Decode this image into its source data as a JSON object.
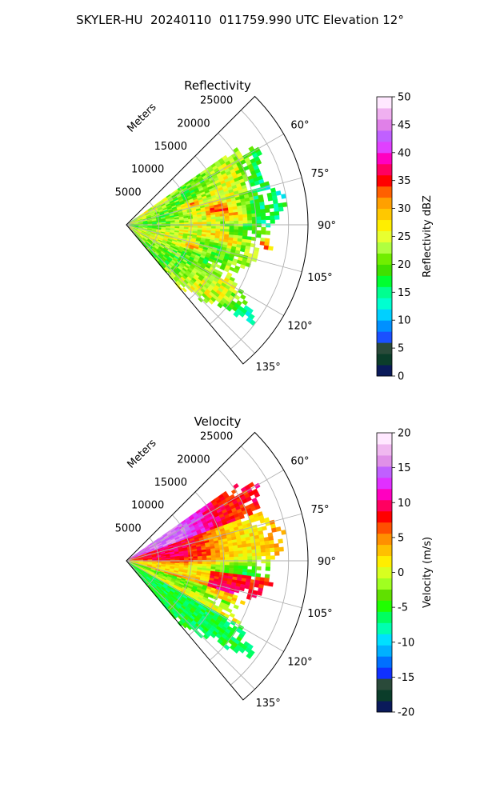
{
  "figure_title": "SKYLER-HU  20240110  011759.990 UTC Elevation 12°",
  "chart_data": [
    {
      "type": "heatmap",
      "title": "Reflectivity",
      "projection": "polar-sector",
      "range_label": "Meters",
      "range_ticks": [
        5000,
        10000,
        15000,
        20000,
        25000
      ],
      "range_max": 28000,
      "azimuth_min": 45,
      "azimuth_max": 140,
      "azimuth_ticks": [
        "60°",
        "75°",
        "90°",
        "105°",
        "120°",
        "135°"
      ],
      "azimuth_tick_values": [
        60,
        75,
        90,
        105,
        120,
        135
      ],
      "grid": true,
      "colorbar": {
        "label": "Reflectivity dBZ",
        "min": 0,
        "max": 50,
        "ticks": [
          0,
          5,
          10,
          15,
          20,
          25,
          30,
          35,
          40,
          45,
          50
        ],
        "colors": [
          "#0a1a5a",
          "#0b3d2a",
          "#2a4a3a",
          "#1a50ff",
          "#0090ff",
          "#00d0ff",
          "#00ffd0",
          "#00ff90",
          "#00ff30",
          "#40e000",
          "#70ee00",
          "#b0ff40",
          "#e8ff30",
          "#ffee00",
          "#ffc800",
          "#ffa000",
          "#ff6000",
          "#ff0000",
          "#ff0060",
          "#ff00c0",
          "#e040ff",
          "#c060ff",
          "#e080e8",
          "#f0b0f0",
          "#ffe8ff"
        ]
      }
    },
    {
      "type": "heatmap",
      "title": "Velocity",
      "projection": "polar-sector",
      "range_label": "Meters",
      "range_ticks": [
        5000,
        10000,
        15000,
        20000,
        25000
      ],
      "range_max": 28000,
      "azimuth_min": 45,
      "azimuth_max": 140,
      "azimuth_ticks": [
        "60°",
        "75°",
        "90°",
        "105°",
        "120°",
        "135°"
      ],
      "azimuth_tick_values": [
        60,
        75,
        90,
        105,
        120,
        135
      ],
      "grid": true,
      "colorbar": {
        "label": "Velocity (m/s)",
        "min": -20,
        "max": 20,
        "ticks": [
          -20,
          -15,
          -10,
          -5,
          0,
          5,
          10,
          15,
          20
        ],
        "colors": [
          "#0a1a5a",
          "#0b3d2a",
          "#2a4a3a",
          "#1030ff",
          "#0070ff",
          "#00b0ff",
          "#00e0ff",
          "#00ffb0",
          "#00ff60",
          "#20ff00",
          "#60e000",
          "#a0ff20",
          "#d8ff20",
          "#ffee00",
          "#ffc000",
          "#ff9000",
          "#ff5000",
          "#ff0000",
          "#ff0060",
          "#ff00c0",
          "#e030ff",
          "#c060ff",
          "#e090e8",
          "#f0b8f0",
          "#ffe8ff"
        ]
      }
    }
  ]
}
